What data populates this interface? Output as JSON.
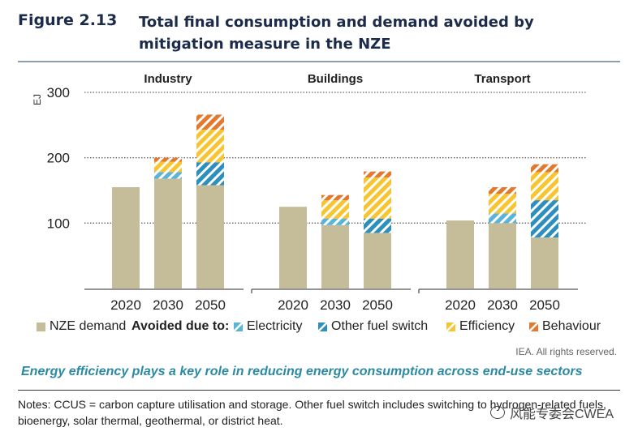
{
  "figure": {
    "label": "Figure 2.13",
    "title": "Total final consumption and demand avoided by mitigation measure in the NZE"
  },
  "colors": {
    "nze": "#c5bc99",
    "electricity": "#5ab4d9",
    "other_fuel_switch": "#2e8fbf",
    "efficiency": "#f7c531",
    "behaviour": "#e2792f",
    "grid": "#666666",
    "arrow": "#2b8aa3"
  },
  "chart_data": {
    "type": "bar",
    "stacked": true,
    "ylabel": "EJ",
    "ylim": [
      0,
      300
    ],
    "yticks": [
      100,
      200,
      300
    ],
    "panels": [
      "Industry",
      "Buildings",
      "Transport"
    ],
    "categories": [
      "2020",
      "2030",
      "2050"
    ],
    "series": [
      {
        "name": "NZE demand",
        "key": "nze",
        "pattern": "solid",
        "values": [
          [
            155,
            168,
            158
          ],
          [
            125,
            97,
            85
          ],
          [
            104,
            100,
            78
          ]
        ]
      },
      {
        "name": "Electricity",
        "key": "electricity",
        "pattern": "hatch",
        "values": [
          [
            0,
            10,
            0
          ],
          [
            0,
            10,
            0
          ],
          [
            0,
            15,
            0
          ]
        ]
      },
      {
        "name": "Other fuel switch",
        "key": "other_fuel_switch",
        "pattern": "hatch",
        "values": [
          [
            0,
            0,
            35
          ],
          [
            0,
            0,
            22
          ],
          [
            0,
            0,
            57
          ]
        ]
      },
      {
        "name": "Efficiency",
        "key": "efficiency",
        "pattern": "hatch",
        "values": [
          [
            0,
            16,
            50
          ],
          [
            0,
            28,
            63
          ],
          [
            0,
            30,
            43
          ]
        ]
      },
      {
        "name": "Behaviour",
        "key": "behaviour",
        "pattern": "hatch",
        "values": [
          [
            0,
            6,
            23
          ],
          [
            0,
            8,
            9
          ],
          [
            0,
            10,
            12
          ]
        ]
      }
    ]
  },
  "legend": {
    "nze": "NZE demand",
    "avoided": "Avoided due to:",
    "electricity": "Electricity",
    "other": "Other fuel switch",
    "efficiency": "Efficiency",
    "behaviour": "Behaviour"
  },
  "rights": "IEA. All rights reserved.",
  "caption": "Energy efficiency plays a key role in reducing energy consumption across end-use sectors",
  "notes": "Notes: CCUS = carbon capture utilisation and storage. Other fuel switch includes switching to hydrogen-related fuels, bioenergy, solar thermal, geothermal, or district heat.",
  "watermark": "风能专委会CWEA"
}
